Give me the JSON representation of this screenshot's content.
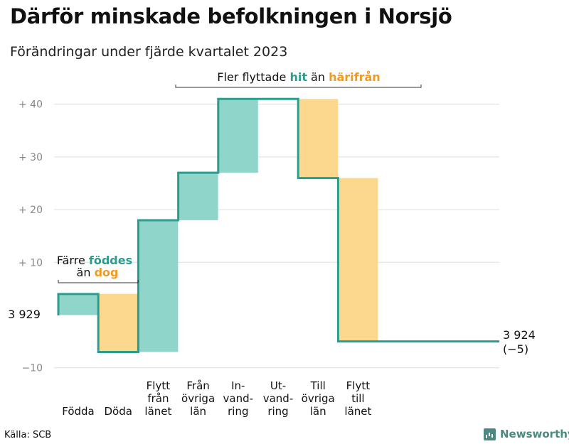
{
  "title": "Därför minskade befolkningen i Norsjö",
  "subtitle": "Förändringar under fjärde kvartalet 2023",
  "source": "Källa: SCB",
  "brand": {
    "name": "Newsworthy",
    "icon": "newsworthy-logo-icon"
  },
  "colors": {
    "teal": "#2a9d8f",
    "teal_light": "#8fd5ca",
    "orange": "#f39a1e",
    "yellow_light": "#fcd88f",
    "grid": "#dddddd",
    "tick": "#888888"
  },
  "chart_data": {
    "type": "waterfall",
    "title": "Därför minskade befolkningen i Norsjö",
    "subtitle": "Förändringar under fjärde kvartalet 2023",
    "start": {
      "label": "3 929",
      "value": 3929
    },
    "end": {
      "label": "3 924",
      "change_label": "(−5)",
      "value": 3924
    },
    "ylim": [
      -13,
      43
    ],
    "yticks": [
      {
        "value": -10,
        "label": "−10"
      },
      {
        "value": 10,
        "label": "+  10"
      },
      {
        "value": 20,
        "label": "+  20"
      },
      {
        "value": 30,
        "label": "+  30"
      },
      {
        "value": 40,
        "label": "+  40"
      }
    ],
    "steps": [
      {
        "label": [
          "Födda"
        ],
        "value": 4,
        "type": "in"
      },
      {
        "label": [
          "Döda"
        ],
        "value": -11,
        "type": "out"
      },
      {
        "label": [
          "Flytt",
          "från",
          "länet"
        ],
        "value": 25,
        "type": "in"
      },
      {
        "label": [
          "Från",
          "övriga",
          "län"
        ],
        "value": 9,
        "type": "in"
      },
      {
        "label": [
          "In-",
          "vand-",
          "ring"
        ],
        "value": 14,
        "type": "in"
      },
      {
        "label": [
          "Ut-",
          "vand-",
          "ring"
        ],
        "value": 0,
        "type": "out"
      },
      {
        "label": [
          "Till",
          "övriga",
          "län"
        ],
        "value": -15,
        "type": "out"
      },
      {
        "label": [
          "Flytt",
          "till",
          "länet"
        ],
        "value": -31,
        "type": "out"
      }
    ],
    "annotations": [
      {
        "pre": "Färre",
        "in": "föddes",
        "mid": "än",
        "out": "dog",
        "from_step": 0,
        "to_step": 1
      },
      {
        "pre": "Fler flyttade",
        "in": "hit",
        "mid": "än",
        "out": "härifrån",
        "from_step": 2,
        "to_step": 6
      }
    ]
  }
}
